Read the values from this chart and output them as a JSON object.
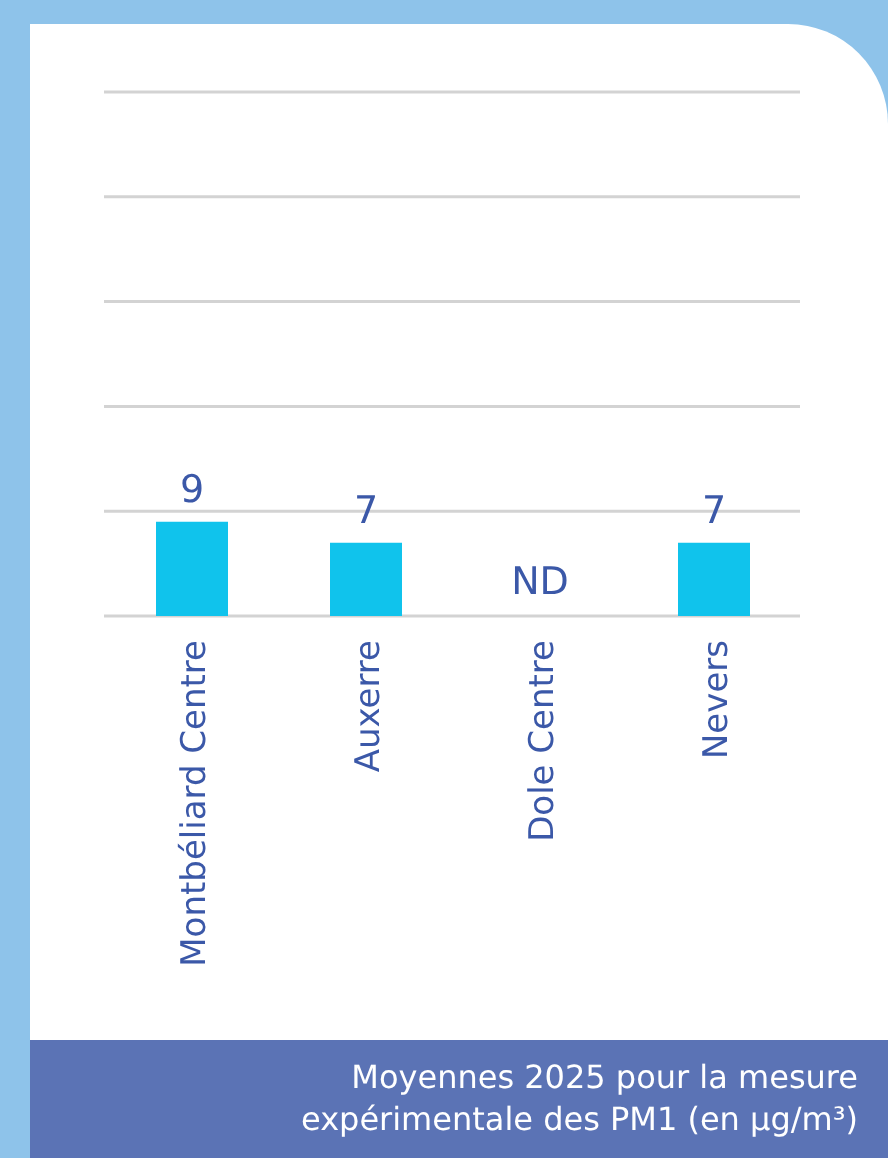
{
  "chart_data": {
    "type": "bar",
    "categories": [
      "Montbéliard Centre",
      "Auxerre",
      "Dole Centre",
      "Nevers"
    ],
    "values": [
      9,
      7,
      null,
      7
    ],
    "color": "#10c3ec",
    "value_labels": [
      "9",
      "7",
      "ND",
      "7"
    ],
    "ylim": [
      0,
      50
    ],
    "yticks": [
      {
        "value": 0,
        "label": null
      },
      {
        "value": 10,
        "label": null
      },
      {
        "value": 20,
        "label": null
      },
      {
        "value": 30,
        "label": null
      },
      {
        "value": 40,
        "label": null
      },
      {
        "value": 50,
        "label": null
      }
    ],
    "grid": "y",
    "tick_labels": "x",
    "annotations": [
      "Moyennes 2025 pour la mesure expérimentale des PM1 (en µg/m³)"
    ]
  }
}
